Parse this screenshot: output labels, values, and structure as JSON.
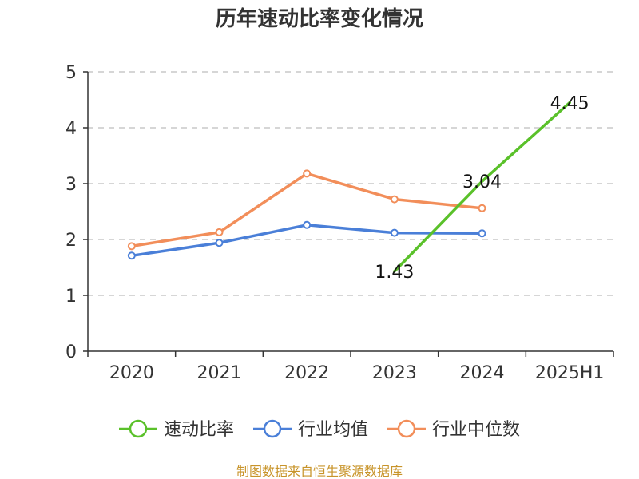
{
  "chart_data": {
    "type": "line",
    "title": "历年速动比率变化情况",
    "categories": [
      "2020",
      "2021",
      "2022",
      "2023",
      "2024",
      "2025H1"
    ],
    "ylim": [
      0,
      5
    ],
    "yticks": [
      "0",
      "1",
      "2",
      "3",
      "4",
      "5"
    ],
    "grid": true,
    "legend_position": "bottom-center",
    "series": [
      {
        "name": "速动比率",
        "color": "#5ac12a",
        "values": [
          null,
          null,
          null,
          1.43,
          3.04,
          4.45
        ],
        "labels": [
          "",
          "",
          "",
          "1.43",
          "3.04",
          "4.45"
        ],
        "show_points": false
      },
      {
        "name": "行业均值",
        "color": "#4a7fd8",
        "values": [
          1.71,
          1.94,
          2.26,
          2.12,
          2.11,
          null
        ],
        "show_points": true
      },
      {
        "name": "行业中位数",
        "color": "#f28e5a",
        "values": [
          1.88,
          2.13,
          3.18,
          2.72,
          2.56,
          null
        ],
        "show_points": true
      }
    ],
    "source": "制图数据来自恒生聚源数据库"
  }
}
